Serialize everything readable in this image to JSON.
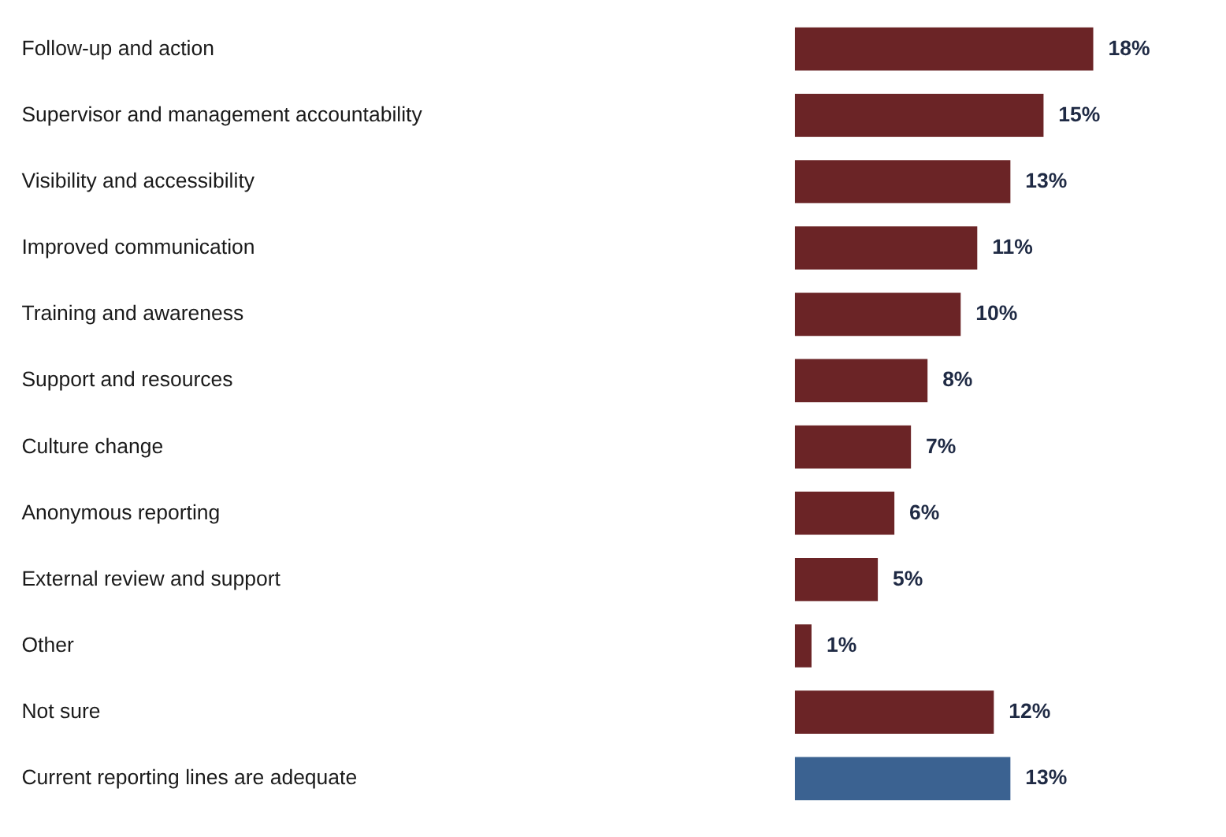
{
  "chart_data": {
    "type": "bar",
    "orientation": "horizontal",
    "value_labels": [
      "18%",
      "15%",
      "13%",
      "11%",
      "10%",
      "8%",
      "7%",
      "6%",
      "5%",
      "1%",
      "12%",
      "13%"
    ],
    "categories": [
      "Follow-up and action",
      "Supervisor and management accountability",
      "Visibility and accessibility",
      "Improved communication",
      "Training and awareness",
      "Support and resources",
      "Culture change",
      "Anonymous reporting",
      "External review and support",
      "Other",
      "Not sure",
      "Current reporting lines are adequate"
    ],
    "values": [
      18,
      15,
      13,
      11,
      10,
      8,
      7,
      6,
      5,
      1,
      12,
      13
    ],
    "colors": [
      "#6b2426",
      "#6b2426",
      "#6b2426",
      "#6b2426",
      "#6b2426",
      "#6b2426",
      "#6b2426",
      "#6b2426",
      "#6b2426",
      "#6b2426",
      "#6b2426",
      "#3b6291"
    ]
  }
}
